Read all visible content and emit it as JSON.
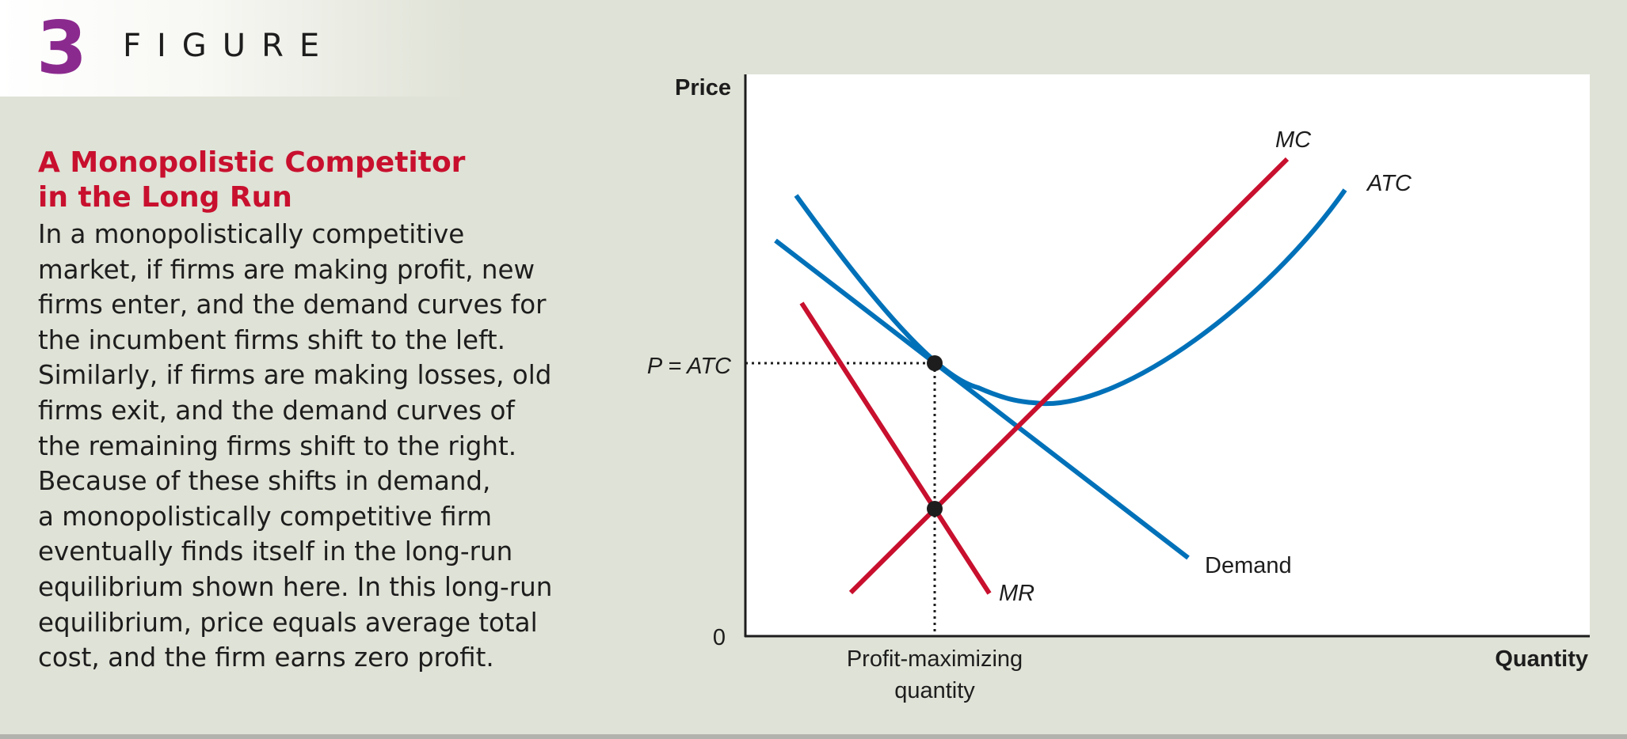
{
  "figure": {
    "number": "3",
    "word": "FIGURE"
  },
  "caption": {
    "title_lines": [
      "A Monopolistic Competitor",
      "in the Long Run"
    ],
    "body_lines": [
      "In a monopolistically competitive",
      "market, if firms are making profit, new",
      "firms enter, and the demand curves for",
      "the incumbent firms shift to the left.",
      "Similarly, if firms are making losses, old",
      "firms exit, and the demand curves of",
      "the remaining firms shift to the right.",
      "Because of these shifts in demand,",
      "a monopolistically competitive firm",
      "eventually finds itself in the long-run",
      "equilibrium shown here. In this long-run",
      "equilibrium, price equals average total",
      "cost, and the firm earns zero profit."
    ]
  },
  "diagram": {
    "y_axis_label": "Price",
    "x_axis_label": "Quantity",
    "origin_label": "0",
    "price_label": "P = ATC",
    "quantity_label_lines": [
      "Profit-maximizing",
      "quantity"
    ],
    "curves": {
      "mc": "MC",
      "atc": "ATC",
      "demand": "Demand",
      "mr": "MR"
    },
    "colors": {
      "blue_curves": "#0071b9",
      "red_curves": "#c8102e",
      "plot_background": "#ffffff",
      "page_background": "#dfe2d6",
      "figure_number": "#8b2a8e",
      "caption_title": "#c8102e"
    }
  }
}
